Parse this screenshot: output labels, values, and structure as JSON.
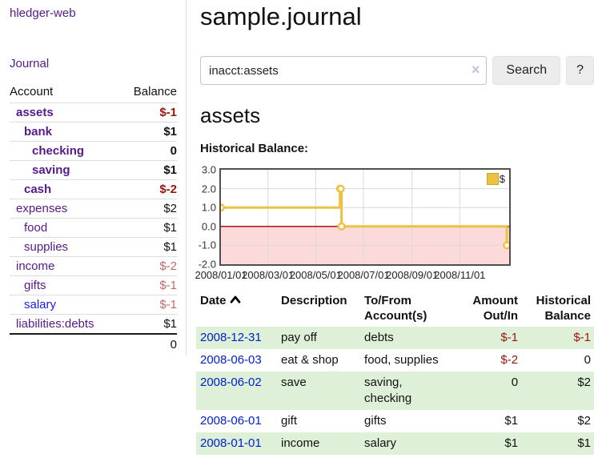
{
  "app": {
    "title": "hledger-web"
  },
  "sidebar": {
    "journal_label": "Journal",
    "accounts_table": {
      "headers": {
        "account": "Account",
        "balance": "Balance"
      },
      "rows": [
        {
          "name": "assets",
          "balance": "$-1",
          "depth": 1,
          "bold": true,
          "negative": "strong"
        },
        {
          "name": "bank",
          "balance": "$1",
          "depth": 2,
          "bold": true,
          "negative": "none"
        },
        {
          "name": "checking",
          "balance": "0",
          "depth": 3,
          "bold": true,
          "negative": "none"
        },
        {
          "name": "saving",
          "balance": "$1",
          "depth": 3,
          "bold": true,
          "negative": "none"
        },
        {
          "name": "cash",
          "balance": "$-2",
          "depth": 2,
          "bold": true,
          "negative": "strong"
        },
        {
          "name": "expenses",
          "balance": "$2",
          "depth": 1,
          "bold": false,
          "negative": "none"
        },
        {
          "name": "food",
          "balance": "$1",
          "depth": 2,
          "bold": false,
          "negative": "none"
        },
        {
          "name": "supplies",
          "balance": "$1",
          "depth": 2,
          "bold": false,
          "negative": "none"
        },
        {
          "name": "income",
          "balance": "$-2",
          "depth": 1,
          "bold": false,
          "negative": "muted"
        },
        {
          "name": "gifts",
          "balance": "$-1",
          "depth": 2,
          "bold": false,
          "negative": "muted"
        },
        {
          "name": "salary",
          "balance": "$-1",
          "depth": 2,
          "bold": false,
          "negative": "muted",
          "link_style": "unvisited"
        },
        {
          "name": "liabilities:debts",
          "balance": "$1",
          "depth": 1,
          "bold": false,
          "negative": "none"
        }
      ],
      "total": "0"
    }
  },
  "main": {
    "title": "sample.journal",
    "search": {
      "value": "inacct:assets",
      "clear_icon": "×",
      "button_label": "Search",
      "help_label": "?"
    },
    "account_heading": "assets",
    "chart_label": "Historical Balance:"
  },
  "chart_data": {
    "type": "line",
    "step": true,
    "title": "Historical Balance",
    "series": [
      {
        "name": "$",
        "points": [
          [
            "2008-01-01",
            1
          ],
          [
            "2008-06-01",
            2
          ],
          [
            "2008-06-02",
            2
          ],
          [
            "2008-06-03",
            0
          ],
          [
            "2008-12-31",
            -1
          ]
        ]
      }
    ],
    "x_start": "2008-01-01",
    "xmax_days": 368,
    "ylim": [
      -2,
      3
    ],
    "ytick_labels": [
      "3.0",
      "2.0",
      "1.0",
      "0.0",
      "-1.0",
      "-2.0"
    ],
    "ytick_values": [
      3,
      2,
      1,
      0,
      -1,
      -2
    ],
    "xticks": [
      "2008/01/01",
      "2008/03/01",
      "2008/05/01",
      "2008/07/01",
      "2008/09/01",
      "2008/11/01"
    ],
    "legend": {
      "label": "$",
      "position": "top-right"
    },
    "grid": true,
    "negative_region_below": 0
  },
  "register_table": {
    "headers": {
      "date": "Date",
      "description": "Description",
      "accounts": "To/From\nAccount(s)",
      "amount": "Amount\nOut/In",
      "balance": "Historical\nBalance"
    },
    "rows": [
      {
        "date": "2008-12-31",
        "description": "pay off",
        "accounts": "debts",
        "amount": "$-1",
        "balance": "$-1"
      },
      {
        "date": "2008-06-03",
        "description": "eat & shop",
        "accounts": "food, supplies",
        "amount": "$-2",
        "balance": "0"
      },
      {
        "date": "2008-06-02",
        "description": "save",
        "accounts": "saving,\nchecking",
        "amount": "0",
        "balance": "$2"
      },
      {
        "date": "2008-06-01",
        "description": "gift",
        "accounts": "gifts",
        "amount": "$1",
        "balance": "$2"
      },
      {
        "date": "2008-01-01",
        "description": "income",
        "accounts": "salary",
        "amount": "$1",
        "balance": "$1"
      }
    ]
  },
  "colors": {
    "link_purple": "#551a8b",
    "link_blue": "#1d1de0",
    "date_link_blue": "#0022cc",
    "negative_strong": "#9c150b",
    "negative_muted": "#c3696b",
    "row_green": "#dff0d8",
    "chart_gold": "#edc240",
    "chart_gold_border": "#c9a42e",
    "chart_negative_fill": "#fcdada",
    "chart_zero_line": "#a40000",
    "chart_border": "#4f4f4f",
    "chart_grid": "#d9d9d9",
    "button_bg": "#ececec",
    "clear_icon_color": "#c6bede"
  }
}
